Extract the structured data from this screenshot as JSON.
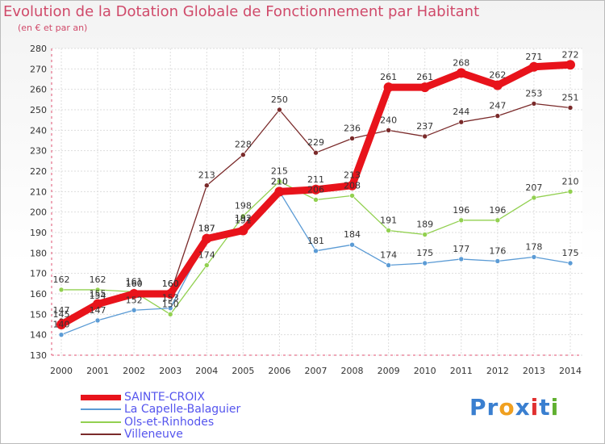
{
  "chart_data": {
    "type": "line",
    "title": "Evolution de la Dotation Globale de Fonctionnement par Habitant",
    "subtitle": "(en € et par an)",
    "x": [
      "2000",
      "2001",
      "2002",
      "2003",
      "2004",
      "2005",
      "2006",
      "2007",
      "2008",
      "2009",
      "2010",
      "2011",
      "2012",
      "2013",
      "2014"
    ],
    "ylim": [
      130,
      280
    ],
    "yticks": [
      130,
      140,
      150,
      160,
      170,
      180,
      190,
      200,
      210,
      220,
      230,
      240,
      250,
      260,
      270,
      280
    ],
    "series": [
      {
        "name": "SAINTE-CROIX",
        "color": "#e8131b",
        "values": [
          145,
          155,
          160,
          160,
          187,
          191,
          210,
          211,
          213,
          261,
          261,
          268,
          262,
          271,
          272
        ],
        "labels": [
          "145",
          "155",
          "160",
          "160",
          "187",
          "191",
          "210",
          "211",
          "213",
          "261",
          "261",
          "268",
          "262",
          "271",
          "272"
        ]
      },
      {
        "name": "La Capelle-Balaguier",
        "color": "#5b9bd5",
        "values": [
          140,
          147,
          152,
          153,
          187,
          192,
          210,
          181,
          184,
          174,
          175,
          177,
          176,
          178,
          175
        ],
        "labels": [
          "140",
          "147",
          "152",
          "153",
          "187",
          "192",
          "210",
          "181",
          "184",
          "174",
          "175",
          "177",
          "176",
          "178",
          "175"
        ]
      },
      {
        "name": "Ols-et-Rinhodes",
        "color": "#92d050",
        "values": [
          162,
          162,
          161,
          150,
          174,
          198,
          215,
          206,
          208,
          191,
          189,
          196,
          196,
          207,
          210
        ],
        "labels": [
          "162",
          "162",
          "161",
          "150",
          "174",
          "198",
          "215",
          "206",
          "208",
          "191",
          "189",
          "196",
          "196",
          "207",
          "210"
        ]
      },
      {
        "name": "Villeneuve",
        "color": "#7a2a2a",
        "values": [
          147,
          154,
          160,
          160,
          213,
          228,
          250,
          229,
          236,
          240,
          237,
          244,
          247,
          253,
          251
        ],
        "labels": [
          "147",
          "154",
          "160",
          "160",
          "213",
          "228",
          "250",
          "229",
          "236",
          "240",
          "237",
          "244",
          "247",
          "253",
          "251"
        ]
      }
    ]
  },
  "logo": {
    "text": "Proxiti",
    "letters": [
      "P",
      "r",
      "o",
      "x",
      "i",
      "t",
      "i"
    ],
    "colors": [
      "#3a7fd0",
      "#3a7fd0",
      "#f0a020",
      "#3a7fd0",
      "#e03030",
      "#3a7fd0",
      "#60b030"
    ]
  }
}
